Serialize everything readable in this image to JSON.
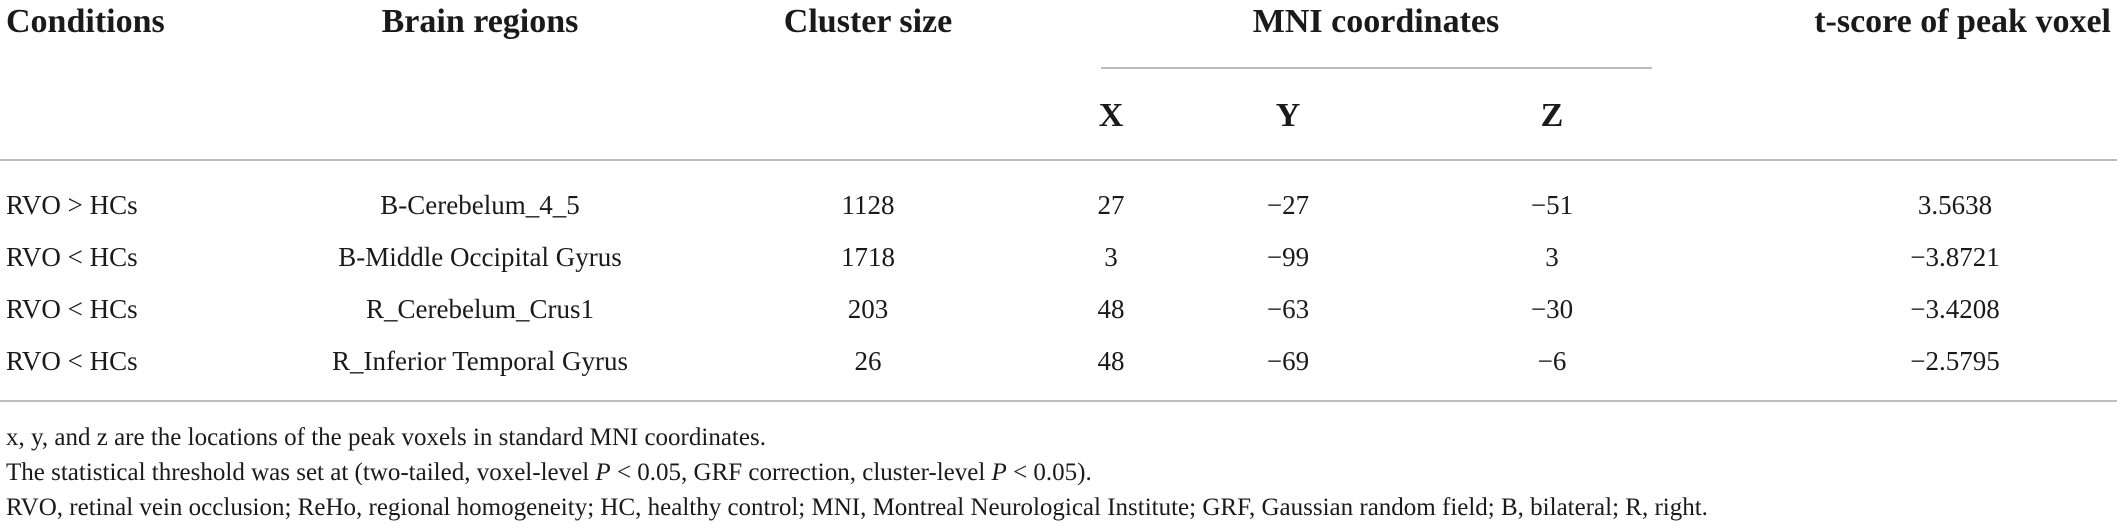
{
  "headers": {
    "conditions": "Conditions",
    "brain_regions": "Brain regions",
    "cluster_size": "Cluster size",
    "mni": "MNI coordinates",
    "x": "X",
    "y": "Y",
    "z": "Z",
    "tscore": "t-score of peak voxel"
  },
  "rows": [
    {
      "condition": "RVO > HCs",
      "region": "B-Cerebelum_4_5",
      "cluster": "1128",
      "x": "27",
      "y": "−27",
      "z": "−51",
      "t": "3.5638"
    },
    {
      "condition": "RVO < HCs",
      "region": "B-Middle Occipital Gyrus",
      "cluster": "1718",
      "x": "3",
      "y": "−99",
      "z": "3",
      "t": "−3.8721"
    },
    {
      "condition": "RVO < HCs",
      "region": "R_Cerebelum_Crus1",
      "cluster": "203",
      "x": "48",
      "y": "−63",
      "z": "−30",
      "t": "−3.4208"
    },
    {
      "condition": "RVO < HCs",
      "region": "R_Inferior Temporal Gyrus",
      "cluster": "26",
      "x": "48",
      "y": "−69",
      "z": "−6",
      "t": "−2.5795"
    }
  ],
  "notes": {
    "line1": "x, y, and z are the locations of the peak voxels in standard MNI coordinates.",
    "line2_a": "The statistical threshold was set at (two-tailed, voxel-level ",
    "line2_p1": "P",
    "line2_b": " < 0.05, GRF correction, cluster-level ",
    "line2_p2": "P",
    "line2_c": " < 0.05).",
    "line3": "RVO, retinal vein occlusion; ReHo, regional homogeneity; HC, healthy control; MNI, Montreal Neurological Institute; GRF, Gaussian random field; B, bilateral; R, right."
  }
}
